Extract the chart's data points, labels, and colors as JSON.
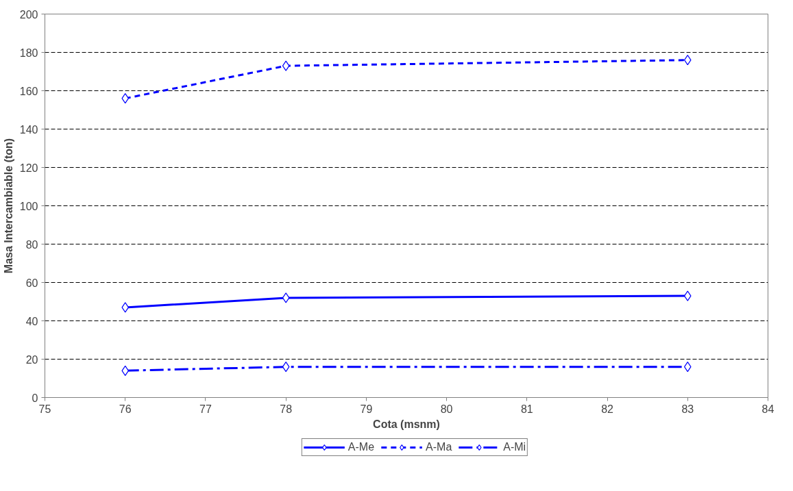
{
  "chart_data": {
    "type": "line",
    "xlabel": "Cota (msnm)",
    "ylabel": "Masa Intercambiable (ton)",
    "x": [
      76,
      78,
      83
    ],
    "series": [
      {
        "name": "A-Me",
        "color": "#0000ff",
        "values": [
          47,
          52,
          53
        ],
        "line_style": "solid"
      },
      {
        "name": "A-Ma",
        "color": "#0000ff",
        "values": [
          156,
          173,
          176
        ],
        "line_style": "dashed"
      },
      {
        "name": "A-Mi",
        "color": "#0000ff",
        "values": [
          14,
          16,
          16
        ],
        "line_style": "dashdot"
      }
    ],
    "xlim": [
      75,
      84
    ],
    "xticks": [
      75,
      76,
      77,
      78,
      79,
      80,
      81,
      82,
      83,
      84
    ],
    "ylim": [
      0,
      200
    ],
    "yticks": [
      0,
      20,
      40,
      60,
      80,
      100,
      120,
      140,
      160,
      180,
      200
    ],
    "grid": "y",
    "legend": "bottom",
    "marker": "diamond"
  }
}
